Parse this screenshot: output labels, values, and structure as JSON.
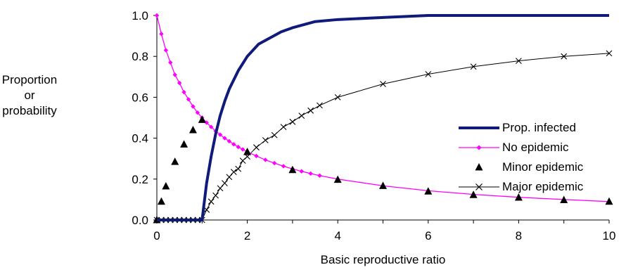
{
  "chart_data": {
    "type": "line",
    "title": "",
    "xlabel": "Basic reproductive ratio",
    "ylabel_lines": [
      "Proportion",
      "or",
      "probability"
    ],
    "xlim": [
      0,
      10
    ],
    "ylim": [
      0,
      1
    ],
    "xticks": [
      0,
      2,
      4,
      6,
      8,
      10
    ],
    "yticks": [
      0.0,
      0.2,
      0.4,
      0.6,
      0.8,
      1.0
    ],
    "ytick_labels": [
      "0.0",
      "0.2",
      "0.4",
      "0.6",
      "0.8",
      "1.0"
    ],
    "grid": false,
    "legend_position": "right",
    "series": [
      {
        "name": "Prop. infected",
        "style": "line",
        "color": "#0f1a7a",
        "points": [
          [
            0,
            0
          ],
          [
            0.5,
            0
          ],
          [
            1.0,
            0
          ],
          [
            1.1,
            0.18
          ],
          [
            1.2,
            0.31
          ],
          [
            1.3,
            0.42
          ],
          [
            1.4,
            0.51
          ],
          [
            1.5,
            0.58
          ],
          [
            1.6,
            0.64
          ],
          [
            1.8,
            0.73
          ],
          [
            2.0,
            0.8
          ],
          [
            2.25,
            0.86
          ],
          [
            2.5,
            0.89
          ],
          [
            2.75,
            0.92
          ],
          [
            3.0,
            0.94
          ],
          [
            3.5,
            0.97
          ],
          [
            4.0,
            0.98
          ],
          [
            5.0,
            0.99
          ],
          [
            6.0,
            1.0
          ],
          [
            7.0,
            1.0
          ],
          [
            8.0,
            1.0
          ],
          [
            10.0,
            1.0
          ]
        ]
      },
      {
        "name": "No epidemic",
        "style": "line-diamond",
        "color": "#ff00ff",
        "points": [
          [
            0,
            1.0
          ],
          [
            0.1,
            0.91
          ],
          [
            0.2,
            0.83
          ],
          [
            0.3,
            0.77
          ],
          [
            0.4,
            0.71
          ],
          [
            0.5,
            0.67
          ],
          [
            0.6,
            0.625
          ],
          [
            0.7,
            0.59
          ],
          [
            0.8,
            0.555
          ],
          [
            0.9,
            0.525
          ],
          [
            1.0,
            0.5
          ],
          [
            1.1,
            0.476
          ],
          [
            1.2,
            0.455
          ],
          [
            1.3,
            0.435
          ],
          [
            1.4,
            0.417
          ],
          [
            1.5,
            0.4
          ],
          [
            1.6,
            0.385
          ],
          [
            1.7,
            0.37
          ],
          [
            1.8,
            0.357
          ],
          [
            1.9,
            0.345
          ],
          [
            2.0,
            0.333
          ],
          [
            2.2,
            0.313
          ],
          [
            2.4,
            0.294
          ],
          [
            2.6,
            0.278
          ],
          [
            2.8,
            0.263
          ],
          [
            3.0,
            0.25
          ],
          [
            3.2,
            0.238
          ],
          [
            3.4,
            0.227
          ],
          [
            3.6,
            0.217
          ],
          [
            4.0,
            0.2
          ],
          [
            5.0,
            0.167
          ],
          [
            6.0,
            0.143
          ],
          [
            7.0,
            0.125
          ],
          [
            8.0,
            0.111
          ],
          [
            9.0,
            0.1
          ],
          [
            10.0,
            0.09
          ]
        ]
      },
      {
        "name": "Minor epidemic",
        "style": "triangle",
        "color": "#000000",
        "points": [
          [
            0,
            0
          ],
          [
            0.1,
            0.09
          ],
          [
            0.2,
            0.165
          ],
          [
            0.4,
            0.285
          ],
          [
            0.6,
            0.37
          ],
          [
            0.8,
            0.44
          ],
          [
            1.0,
            0.49
          ],
          [
            2.0,
            0.333
          ],
          [
            3.0,
            0.245
          ],
          [
            4.0,
            0.197
          ],
          [
            5.0,
            0.167
          ],
          [
            6.0,
            0.14
          ],
          [
            7.0,
            0.123
          ],
          [
            8.0,
            0.11
          ],
          [
            9.0,
            0.098
          ],
          [
            10.0,
            0.09
          ]
        ]
      },
      {
        "name": "Major epidemic",
        "style": "line-x",
        "color": "#000000",
        "points": [
          [
            0,
            0
          ],
          [
            0.1,
            0
          ],
          [
            0.2,
            0
          ],
          [
            0.3,
            0
          ],
          [
            0.4,
            0
          ],
          [
            0.5,
            0
          ],
          [
            0.6,
            0
          ],
          [
            0.7,
            0
          ],
          [
            0.8,
            0
          ],
          [
            0.9,
            0
          ],
          [
            1.0,
            0
          ],
          [
            1.1,
            0.05
          ],
          [
            1.2,
            0.09
          ],
          [
            1.3,
            0.12
          ],
          [
            1.4,
            0.155
          ],
          [
            1.5,
            0.18
          ],
          [
            1.6,
            0.21
          ],
          [
            1.7,
            0.235
          ],
          [
            1.8,
            0.25
          ],
          [
            1.9,
            0.29
          ],
          [
            2.0,
            0.31
          ],
          [
            2.2,
            0.355
          ],
          [
            2.4,
            0.39
          ],
          [
            2.6,
            0.415
          ],
          [
            2.8,
            0.455
          ],
          [
            3.0,
            0.48
          ],
          [
            3.2,
            0.51
          ],
          [
            3.4,
            0.535
          ],
          [
            3.6,
            0.56
          ],
          [
            4.0,
            0.6
          ],
          [
            5.0,
            0.665
          ],
          [
            6.0,
            0.713
          ],
          [
            7.0,
            0.75
          ],
          [
            8.0,
            0.778
          ],
          [
            9.0,
            0.8
          ],
          [
            10.0,
            0.815
          ]
        ]
      }
    ]
  }
}
